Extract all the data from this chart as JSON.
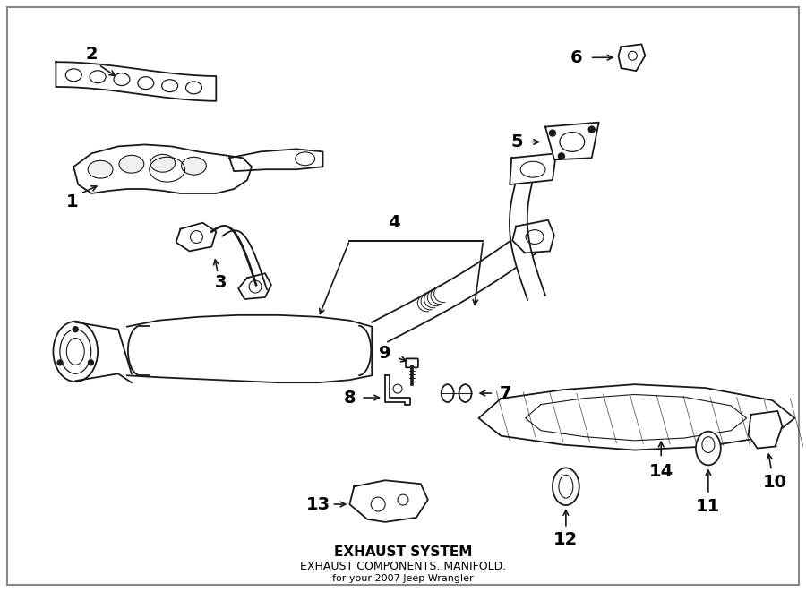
{
  "title": "EXHAUST SYSTEM",
  "subtitle1": "EXHAUST COMPONENTS.",
  "subtitle2": "MANIFOLD.",
  "subtitle3": "for your 2007 Jeep Wrangler",
  "bg_color": "#ffffff",
  "line_color": "#1a1a1a",
  "fig_width": 9.0,
  "fig_height": 6.61,
  "dpi": 100,
  "label_fontsize": 14,
  "border_color": "#cccccc"
}
